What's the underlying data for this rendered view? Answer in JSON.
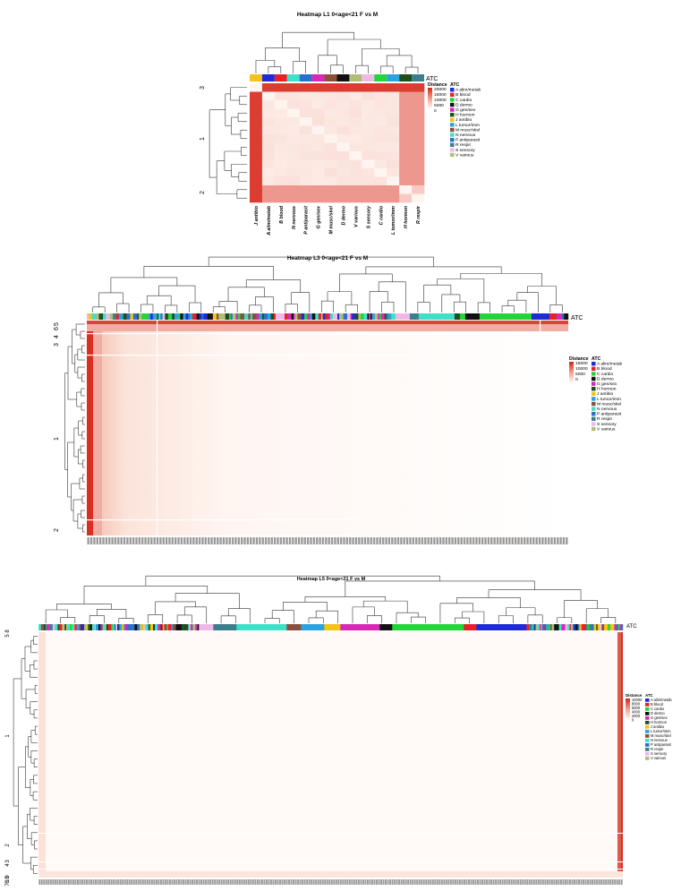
{
  "palette": {
    "A": "#1f2bd6",
    "B": "#e8202a",
    "C": "#22d63a",
    "D": "#111111",
    "G": "#d62ab4",
    "H": "#1e4d1e",
    "J": "#f2c318",
    "L": "#2aa3df",
    "M": "#8a4f3d",
    "N": "#3fe0c8",
    "P": "#2a6fc9",
    "R": "#3c7f8a",
    "S": "#f0b8e8",
    "V": "#b0be7a"
  },
  "heat_colors": {
    "low": "#fff5f0",
    "high": "#d62516"
  },
  "legend": {
    "distance_title": "Distance",
    "atc_title": "ATC",
    "atc_items": [
      {
        "code": "A",
        "label": "A alim/metab"
      },
      {
        "code": "B",
        "label": "B blood"
      },
      {
        "code": "C",
        "label": "C cardio"
      },
      {
        "code": "D",
        "label": "D dermo"
      },
      {
        "code": "G",
        "label": "G gen/sex"
      },
      {
        "code": "H",
        "label": "H hormon"
      },
      {
        "code": "J",
        "label": "J antibio"
      },
      {
        "code": "L",
        "label": "L tumor/imm"
      },
      {
        "code": "M",
        "label": "M musc/skel"
      },
      {
        "code": "N",
        "label": "N nervous"
      },
      {
        "code": "P",
        "label": "P antiparasit"
      },
      {
        "code": "R",
        "label": "R respir"
      },
      {
        "code": "S",
        "label": "S sensory"
      },
      {
        "code": "V",
        "label": "V various"
      }
    ]
  },
  "annotation_label": "ATC",
  "chart_data": [
    {
      "type": "heatmap",
      "title": "Heatmap L1 0<age<21 F vs M",
      "columns": [
        "J antibio",
        "A alim/metab",
        "B blood",
        "N nervous",
        "P antiparasit",
        "G gen/sex",
        "M musc/skel",
        "D dermo",
        "V various",
        "S sensory",
        "C cardio",
        "L tumor/imm",
        "H hormon",
        "R respir"
      ],
      "column_atc": [
        "J",
        "A",
        "B",
        "N",
        "P",
        "G",
        "M",
        "D",
        "V",
        "S",
        "C",
        "L",
        "H",
        "R"
      ],
      "row_cluster_labels": [
        "3",
        "1",
        "2"
      ],
      "color_scale_ticks": [
        20000,
        15000,
        10000,
        5000,
        0
      ],
      "color_scale_range": [
        0,
        20000
      ],
      "grid": false,
      "legend_position": "right"
    },
    {
      "type": "heatmap",
      "title": "Heatmap L3 0<age<21 F vs M",
      "row_cluster_labels": [
        "5",
        "6",
        "4",
        "3",
        "1",
        "2"
      ],
      "color_scale_ticks": [
        15000,
        10000,
        5000,
        0
      ],
      "color_scale_range": [
        0,
        15000
      ],
      "grid": false,
      "legend_position": "right"
    },
    {
      "type": "heatmap",
      "title": "Heatmap L5 0<age<21 F vs M",
      "row_cluster_labels": [
        "5",
        "8",
        "1",
        "2",
        "4",
        "3",
        "10",
        "9",
        "6",
        "7"
      ],
      "color_scale_ticks": [
        10000,
        8000,
        6000,
        4000,
        2000,
        0
      ],
      "color_scale_range": [
        0,
        10000
      ],
      "grid": false,
      "legend_position": "right"
    }
  ]
}
